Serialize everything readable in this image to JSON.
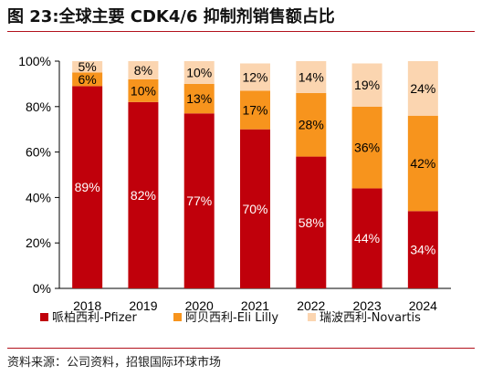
{
  "title": "图 23:全球主要 CDK4/6 抑制剂销售额占比",
  "source": "资料来源：公司资料，招银国际环球市场",
  "chart_data": {
    "type": "bar",
    "stacked": true,
    "categories": [
      "2018",
      "2019",
      "2020",
      "2021",
      "2022",
      "2023",
      "2024"
    ],
    "y_ticks": [
      "0%",
      "20%",
      "40%",
      "60%",
      "80%",
      "100%"
    ],
    "ylim": [
      0,
      100
    ],
    "legend_position": "bottom",
    "series": [
      {
        "name": "哌柏西利-Pfizer",
        "color": "#c0000b",
        "label_color": "#ffffff",
        "values": [
          89,
          82,
          77,
          70,
          58,
          44,
          34
        ],
        "labels": [
          "89%",
          "82%",
          "77%",
          "70%",
          "58%",
          "44%",
          "34%"
        ]
      },
      {
        "name": "阿贝西利-Eli Lilly",
        "color": "#f7941d",
        "label_color": "#000000",
        "values": [
          6,
          10,
          13,
          17,
          28,
          36,
          42
        ],
        "labels": [
          "6%",
          "10%",
          "13%",
          "17%",
          "28%",
          "36%",
          "42%"
        ]
      },
      {
        "name": "瑞波西利-Novartis",
        "color": "#fbd5b0",
        "label_color": "#000000",
        "values": [
          5,
          8,
          10,
          12,
          14,
          19,
          24
        ],
        "labels": [
          "5%",
          "8%",
          "10%",
          "12%",
          "14%",
          "19%",
          "24%"
        ]
      }
    ]
  }
}
